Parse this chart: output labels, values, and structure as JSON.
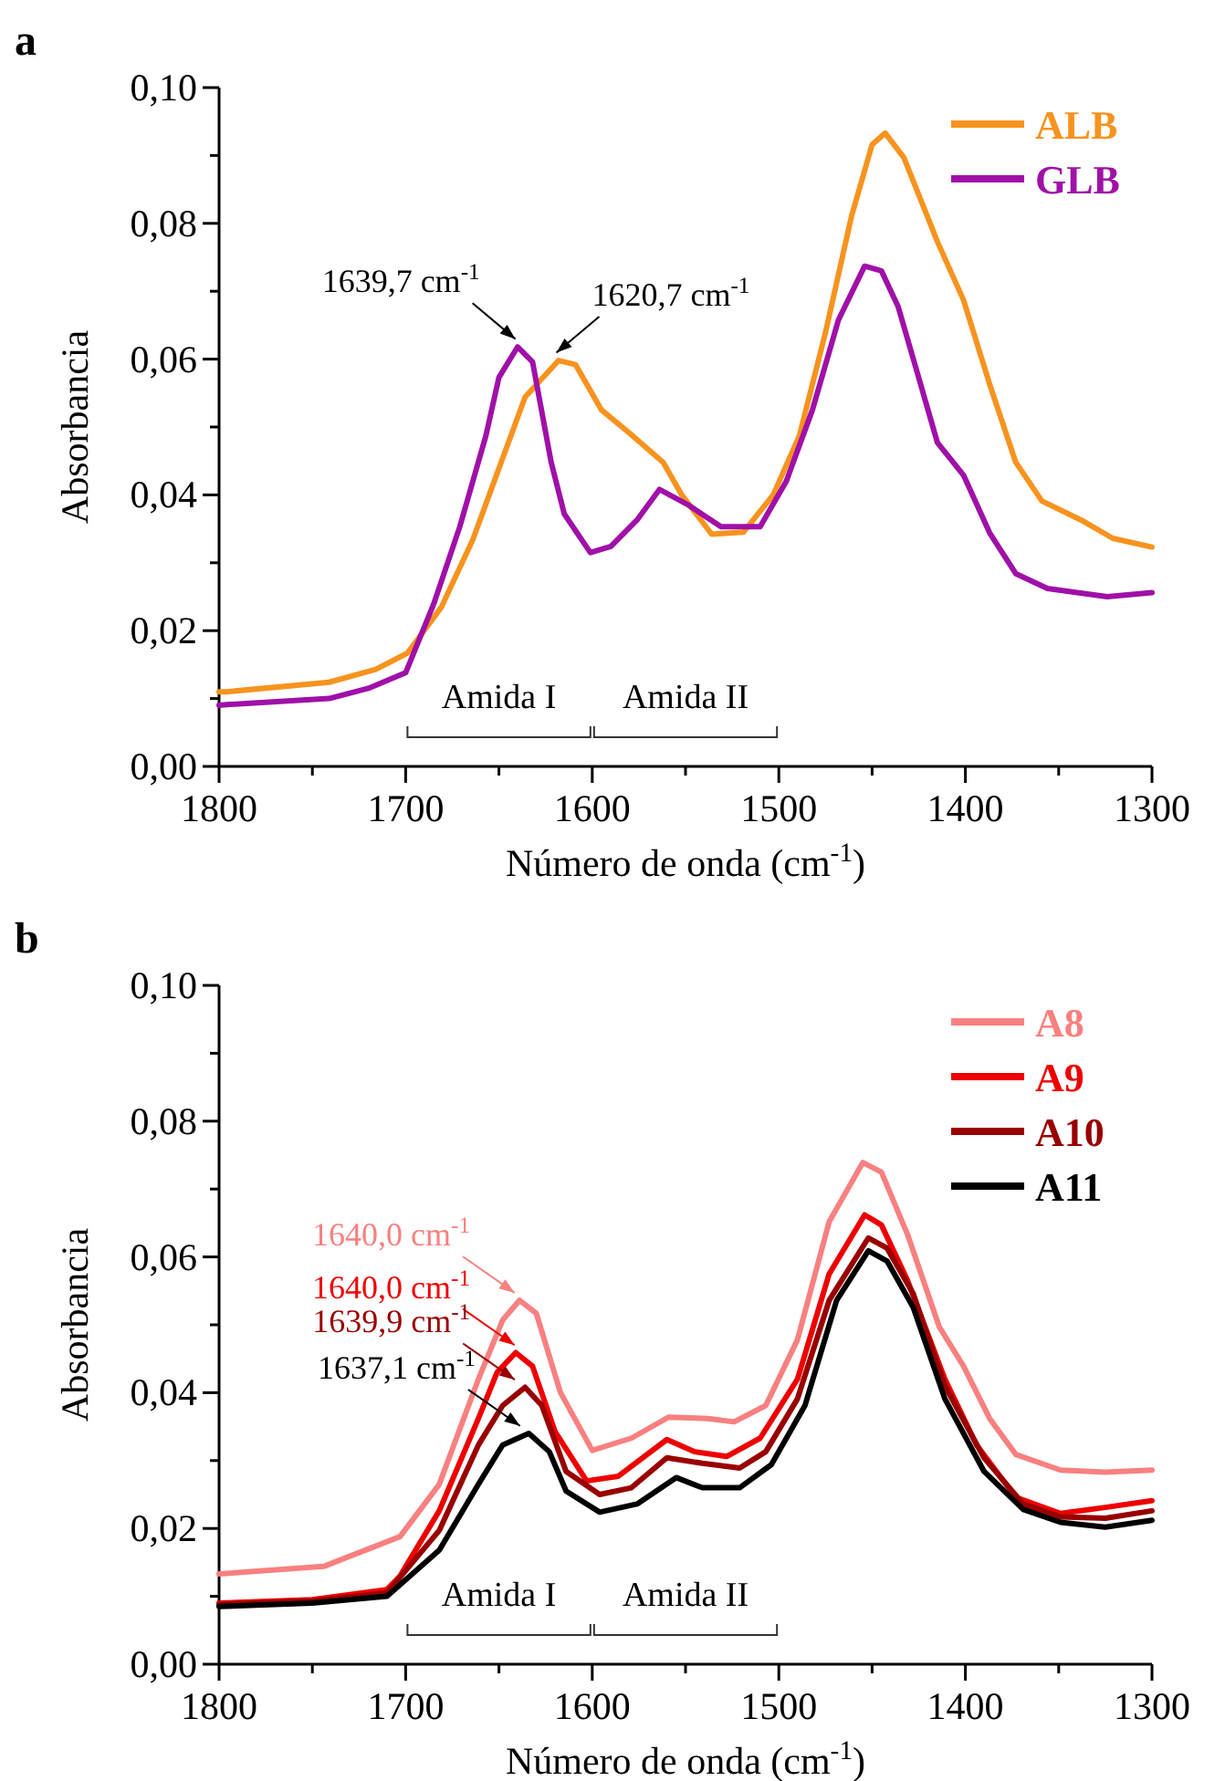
{
  "chart_data": [
    {
      "type": "line",
      "title": "a",
      "xlabel": "Número de onda (cm$^{-1}$)",
      "ylabel": "Absorbancia",
      "xlim": [
        1800,
        1300
      ],
      "xticks": [
        1800,
        {
          "value": 1750,
          "label": null
        },
        1700,
        {
          "value": 1650,
          "label": null
        },
        1600,
        {
          "value": 1550,
          "label": null
        },
        1500,
        {
          "value": 1450,
          "label": null
        },
        1400,
        {
          "value": 1350,
          "label": null
        },
        1300
      ],
      "ylim": [
        0,
        0.1
      ],
      "yticks": [
        {
          "value": 0,
          "label": "0,00"
        },
        {
          "value": 0.01,
          "label": null
        },
        {
          "value": 0.02,
          "label": "0,02"
        },
        {
          "value": 0.03,
          "label": null
        },
        {
          "value": 0.04,
          "label": "0,04"
        },
        {
          "value": 0.05,
          "label": null
        },
        {
          "value": 0.06,
          "label": "0,06"
        },
        {
          "value": 0.07,
          "label": null
        },
        {
          "value": 0.08,
          "label": "0,08"
        },
        {
          "value": 0.09,
          "label": null
        },
        {
          "value": 0.1,
          "label": "0,10"
        }
      ],
      "legend": "top right",
      "grid": false,
      "marker": "none",
      "line_style": "solid",
      "series": [
        {
          "name": "ALB",
          "color": "#f7931e",
          "x": [
            1800,
            1796,
            1741,
            1716,
            1699,
            1681,
            1664,
            1650,
            1636,
            1618,
            1609,
            1595,
            1580,
            1562,
            1552,
            1536,
            1519,
            1503,
            1489,
            1475,
            1461,
            1450,
            1443,
            1433,
            1415,
            1401,
            1387,
            1373,
            1359,
            1338,
            1321,
            1300
          ],
          "values": [
            0.011,
            0.011,
            0.0124,
            0.0143,
            0.0167,
            0.0234,
            0.0334,
            0.0439,
            0.0544,
            0.0598,
            0.0592,
            0.0525,
            0.0491,
            0.0448,
            0.04,
            0.0342,
            0.0345,
            0.04,
            0.0487,
            0.0639,
            0.0811,
            0.0916,
            0.0933,
            0.0897,
            0.0773,
            0.0687,
            0.0563,
            0.0448,
            0.0391,
            0.0363,
            0.0336,
            0.0323
          ]
        },
        {
          "name": "GLB",
          "color": "#a010a8",
          "x": [
            1800,
            1796,
            1741,
            1720,
            1700,
            1685,
            1671,
            1657,
            1650,
            1640,
            1632,
            1622,
            1615,
            1601,
            1590,
            1576,
            1564,
            1549,
            1531,
            1510,
            1496,
            1482,
            1468,
            1454,
            1445,
            1436,
            1426,
            1415,
            1401,
            1387,
            1373,
            1356,
            1324,
            1300
          ],
          "values": [
            0.009,
            0.0091,
            0.01,
            0.0115,
            0.0138,
            0.0239,
            0.0353,
            0.0487,
            0.0573,
            0.0618,
            0.0596,
            0.0448,
            0.0372,
            0.0315,
            0.0324,
            0.0363,
            0.0408,
            0.0386,
            0.0353,
            0.0353,
            0.042,
            0.0525,
            0.0658,
            0.0737,
            0.073,
            0.0677,
            0.0582,
            0.0477,
            0.0429,
            0.0344,
            0.0284,
            0.0262,
            0.025,
            0.0256
          ]
        }
      ],
      "annotations": [
        {
          "text": "1639,7 cm$^{-1}$",
          "x": 1639.7,
          "y": 0.0618
        },
        {
          "text": "1620,7 cm$^{-1}$",
          "x": 1620.7,
          "y": 0.0598
        },
        "Amida I",
        "Amida II"
      ]
    },
    {
      "type": "line",
      "title": "b",
      "xlabel": "Número de onda (cm$^{-1}$)",
      "ylabel": "Absorbancia",
      "xlim": [
        1800,
        1300
      ],
      "xticks": [
        1800,
        {
          "value": 1750,
          "label": null
        },
        1700,
        {
          "value": 1650,
          "label": null
        },
        1600,
        {
          "value": 1550,
          "label": null
        },
        1500,
        {
          "value": 1450,
          "label": null
        },
        1400,
        {
          "value": 1350,
          "label": null
        },
        1300
      ],
      "ylim": [
        0,
        0.1
      ],
      "yticks": [
        {
          "value": 0,
          "label": "0,00"
        },
        {
          "value": 0.01,
          "label": null
        },
        {
          "value": 0.02,
          "label": "0,02"
        },
        {
          "value": 0.03,
          "label": null
        },
        {
          "value": 0.04,
          "label": "0,04"
        },
        {
          "value": 0.05,
          "label": null
        },
        {
          "value": 0.06,
          "label": "0,06"
        },
        {
          "value": 0.07,
          "label": null
        },
        {
          "value": 0.08,
          "label": "0,08"
        },
        {
          "value": 0.09,
          "label": null
        },
        {
          "value": 0.1,
          "label": "0,10"
        }
      ],
      "legend": "top right",
      "grid": false,
      "marker": "none",
      "line_style": "solid",
      "series": [
        {
          "name": "A8",
          "color": "#f88080",
          "x": [
            1800,
            1744,
            1703,
            1682,
            1661,
            1648,
            1639,
            1630,
            1617,
            1600,
            1579,
            1559,
            1538,
            1524,
            1507,
            1490,
            1473,
            1455,
            1445,
            1431,
            1414,
            1401,
            1387,
            1373,
            1349,
            1325,
            1300
          ],
          "values": [
            0.0133,
            0.0144,
            0.0188,
            0.0265,
            0.042,
            0.0507,
            0.0536,
            0.0517,
            0.04,
            0.0315,
            0.0333,
            0.0364,
            0.0362,
            0.0357,
            0.0381,
            0.0478,
            0.0652,
            0.0739,
            0.0725,
            0.0633,
            0.0497,
            0.0439,
            0.0362,
            0.0309,
            0.0286,
            0.0283,
            0.0286
          ]
        },
        {
          "name": "A9",
          "color": "#ee0000",
          "x": [
            1800,
            1750,
            1710,
            1703,
            1682,
            1661,
            1651,
            1641,
            1632,
            1620,
            1603,
            1586,
            1560,
            1545,
            1528,
            1510,
            1490,
            1473,
            1454,
            1445,
            1431,
            1411,
            1394,
            1373,
            1349,
            1325,
            1300
          ],
          "values": [
            0.009,
            0.0095,
            0.011,
            0.013,
            0.0226,
            0.0362,
            0.043,
            0.0459,
            0.0439,
            0.0343,
            0.027,
            0.0277,
            0.0331,
            0.0313,
            0.0306,
            0.0333,
            0.042,
            0.0575,
            0.0662,
            0.0647,
            0.0565,
            0.042,
            0.0323,
            0.0246,
            0.0222,
            0.0231,
            0.0241
          ]
        },
        {
          "name": "A10",
          "color": "#990000",
          "x": [
            1800,
            1750,
            1710,
            1682,
            1661,
            1648,
            1636,
            1627,
            1614,
            1596,
            1579,
            1560,
            1541,
            1521,
            1507,
            1490,
            1473,
            1452,
            1442,
            1428,
            1411,
            1390,
            1369,
            1349,
            1325,
            1300
          ],
          "values": [
            0.0088,
            0.0093,
            0.0105,
            0.0197,
            0.0323,
            0.0381,
            0.0408,
            0.0381,
            0.0284,
            0.025,
            0.026,
            0.0304,
            0.0296,
            0.0289,
            0.0313,
            0.0391,
            0.0536,
            0.0628,
            0.0613,
            0.0546,
            0.041,
            0.0304,
            0.0236,
            0.0217,
            0.0215,
            0.0226
          ]
        },
        {
          "name": "A11",
          "color": "#000000",
          "x": [
            1800,
            1750,
            1710,
            1682,
            1661,
            1648,
            1634,
            1623,
            1614,
            1596,
            1576,
            1555,
            1541,
            1521,
            1504,
            1486,
            1469,
            1452,
            1442,
            1428,
            1411,
            1390,
            1369,
            1349,
            1325,
            1300
          ],
          "values": [
            0.0085,
            0.009,
            0.01,
            0.0168,
            0.0265,
            0.0323,
            0.034,
            0.0313,
            0.0255,
            0.0224,
            0.0236,
            0.0275,
            0.026,
            0.026,
            0.0294,
            0.0381,
            0.0536,
            0.0609,
            0.0594,
            0.0526,
            0.0391,
            0.0284,
            0.0228,
            0.0209,
            0.0202,
            0.0212
          ]
        }
      ],
      "annotations": [
        {
          "text": "1640,0 cm$^{-1}$",
          "x": 1640,
          "y": 0.0536
        },
        {
          "text": "1640,0 cm$^{-1}$",
          "x": 1640,
          "y": 0.0459
        },
        {
          "text": "1639,9 cm$^{-1}$",
          "x": 1639.9,
          "y": 0.0408
        },
        {
          "text": "1637,1 cm$^{-1}$",
          "x": 1637.1,
          "y": 0.034
        },
        "Amida I",
        "Amida II"
      ]
    }
  ]
}
